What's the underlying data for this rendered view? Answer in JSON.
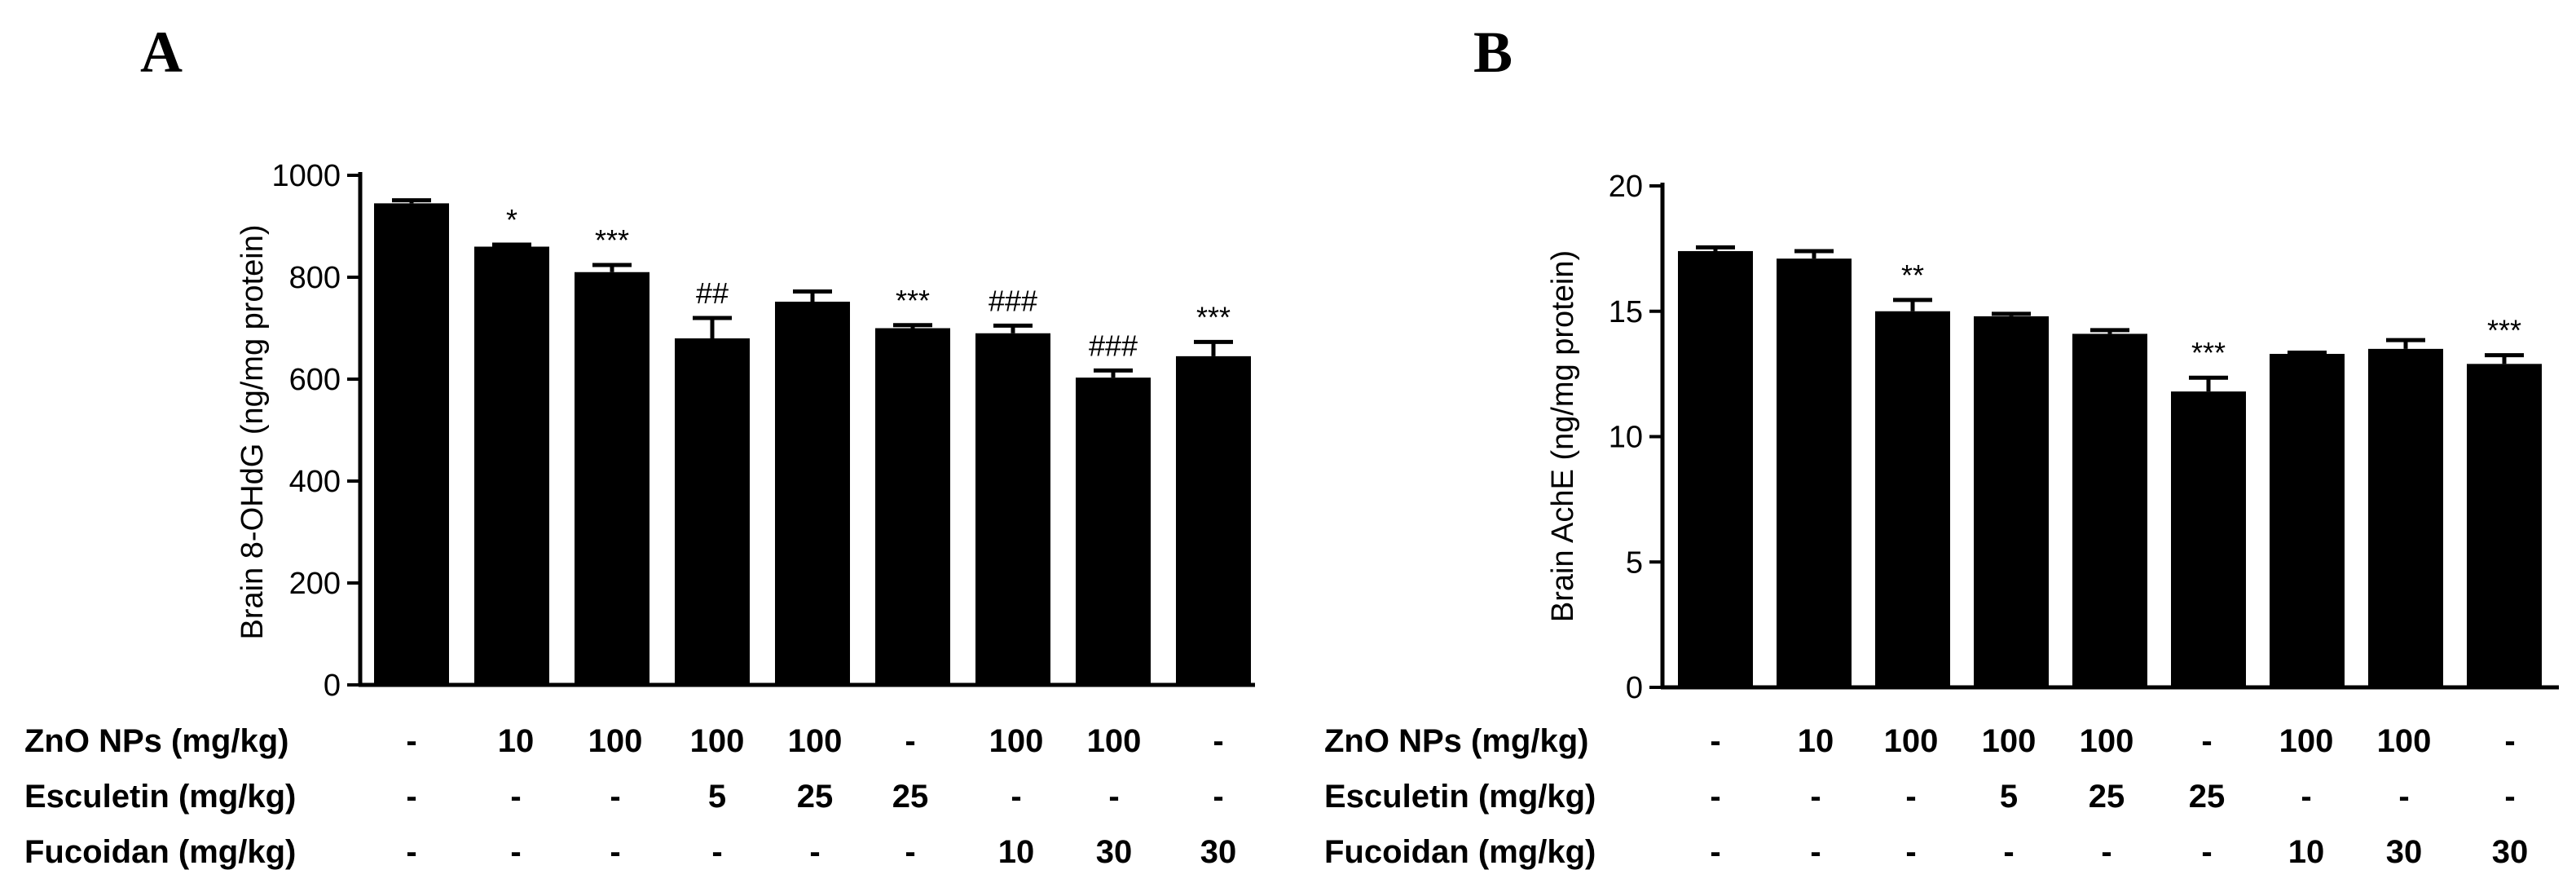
{
  "chart_data": [
    {
      "panel": "A",
      "type": "bar",
      "ylabel": "Brain 8-OHdG (ng/mg protein)",
      "ylim": [
        0,
        1000
      ],
      "yticks": [
        "0",
        "200",
        "400",
        "600",
        "800",
        "1000"
      ],
      "values": [
        945,
        860,
        810,
        680,
        752,
        700,
        690,
        603,
        645
      ],
      "errors": [
        6,
        4,
        14,
        40,
        20,
        6,
        15,
        14,
        28
      ],
      "annotations": [
        "",
        "*",
        "***",
        "##",
        "",
        "***",
        "###",
        "###",
        "***"
      ],
      "rows": [
        {
          "label": "ZnO NPs (mg/kg)",
          "cells": [
            "-",
            "10",
            "100",
            "100",
            "100",
            "-",
            "100",
            "100",
            "-"
          ]
        },
        {
          "label": "Esculetin (mg/kg)",
          "cells": [
            "-",
            "-",
            "-",
            "5",
            "25",
            "25",
            "-",
            "-",
            "-"
          ]
        },
        {
          "label": "Fucoidan (mg/kg)",
          "cells": [
            "-",
            "-",
            "-",
            "-",
            "-",
            "-",
            "10",
            "30",
            "30"
          ]
        }
      ]
    },
    {
      "panel": "B",
      "type": "bar",
      "ylabel": "Brain AchE (ng/mg protein)",
      "ylim": [
        0,
        20
      ],
      "yticks": [
        "0",
        "5",
        "10",
        "15",
        "20"
      ],
      "values": [
        17.4,
        17.1,
        15.0,
        14.8,
        14.1,
        11.8,
        13.3,
        13.5,
        12.9
      ],
      "errors": [
        0.15,
        0.3,
        0.45,
        0.1,
        0.15,
        0.55,
        0.05,
        0.35,
        0.35
      ],
      "annotations": [
        "",
        "",
        "**",
        "",
        "",
        "***",
        "",
        "",
        "***"
      ],
      "rows": [
        {
          "label": "ZnO NPs (mg/kg)",
          "cells": [
            "-",
            "10",
            "100",
            "100",
            "100",
            "-",
            "100",
            "100",
            "-"
          ]
        },
        {
          "label": "Esculetin (mg/kg)",
          "cells": [
            "-",
            "-",
            "-",
            "5",
            "25",
            "25",
            "-",
            "-",
            "-"
          ]
        },
        {
          "label": "Fucoidan (mg/kg)",
          "cells": [
            "-",
            "-",
            "-",
            "-",
            "-",
            "-",
            "10",
            "30",
            "30"
          ]
        }
      ]
    }
  ],
  "colors": {
    "bar": "#000000",
    "axis": "#000000",
    "background": "#ffffff"
  }
}
